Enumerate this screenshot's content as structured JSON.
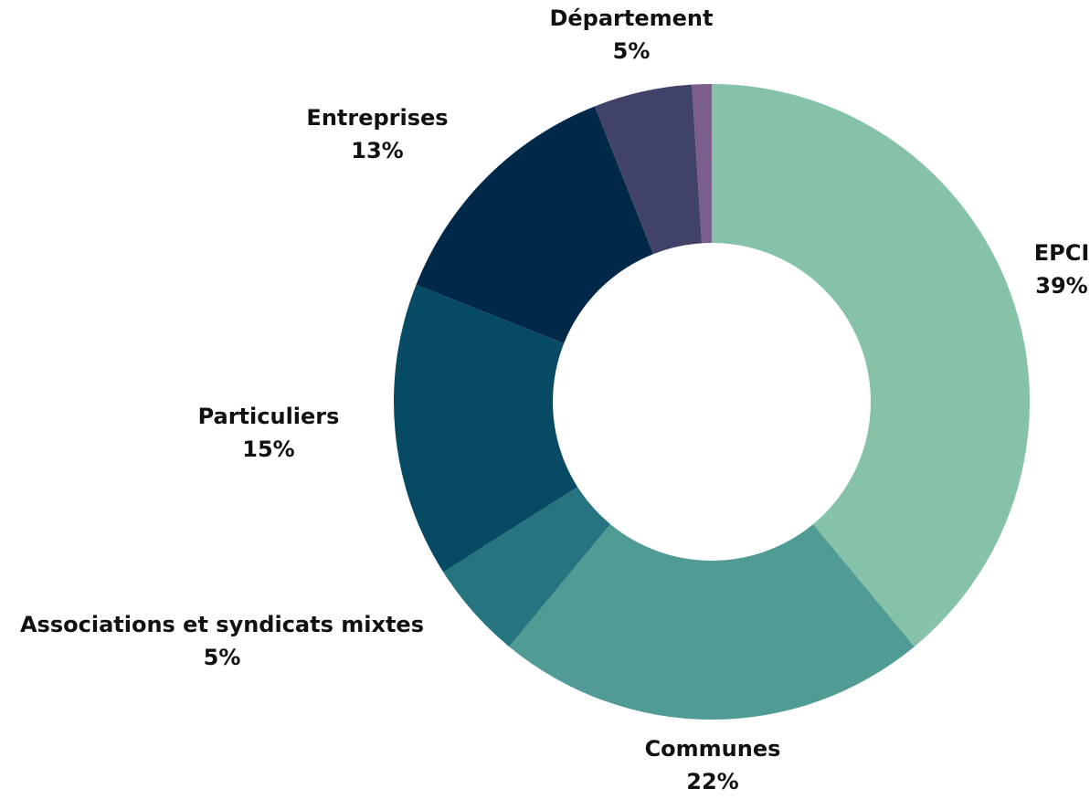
{
  "chart_data": {
    "type": "pie",
    "subtype": "donut",
    "title": "",
    "legend": "none",
    "slices": [
      {
        "name": "EPCI",
        "value": 39,
        "value_label": "39%",
        "color": "#85c2a8"
      },
      {
        "name": "Communes",
        "value": 22,
        "value_label": "22%",
        "color": "#519b95"
      },
      {
        "name": "Associations et syndicats mixtes",
        "value": 5,
        "value_label": "5%",
        "color": "#267480"
      },
      {
        "name": "Particuliers",
        "value": 15,
        "value_label": "15%",
        "color": "#064a64"
      },
      {
        "name": "Entreprises",
        "value": 13,
        "value_label": "13%",
        "color": "#002849"
      },
      {
        "name": "Département",
        "value": 5,
        "value_label": "5%",
        "color": "#414268"
      },
      {
        "name": "",
        "value": 1,
        "value_label": "",
        "color": "#7b5f8a"
      }
    ]
  }
}
